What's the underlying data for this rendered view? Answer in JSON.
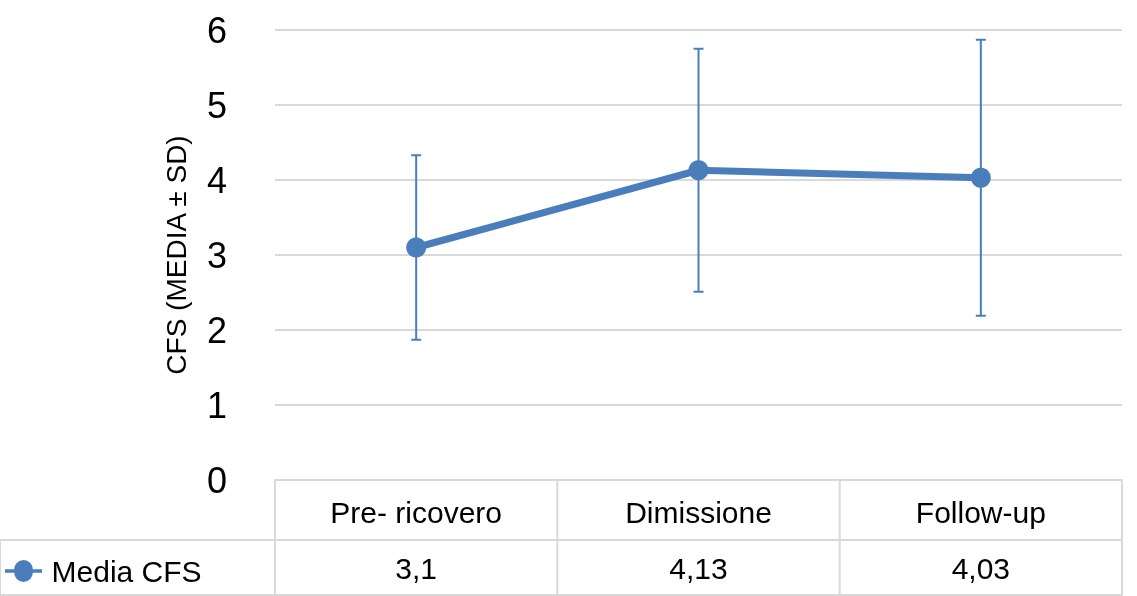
{
  "chart_data": {
    "type": "line",
    "ylabel": "CFS (MEDIA ± SD)",
    "categories": [
      "Pre- ricovero",
      "Dimissione",
      "Follow-up"
    ],
    "series": [
      {
        "name": "Media CFS",
        "color": "#4a7ebb",
        "values": [
          3.1,
          4.13,
          4.03
        ],
        "errors": [
          1.23,
          1.62,
          1.84
        ],
        "value_labels": [
          "3,1",
          "4,13",
          "4,03"
        ]
      }
    ],
    "ylim": [
      0,
      6
    ],
    "yticks": [
      0,
      1,
      2,
      3,
      4,
      5,
      6
    ],
    "grid": "y",
    "marker": "circle",
    "line_style": "solid",
    "legend": "bottom left"
  }
}
